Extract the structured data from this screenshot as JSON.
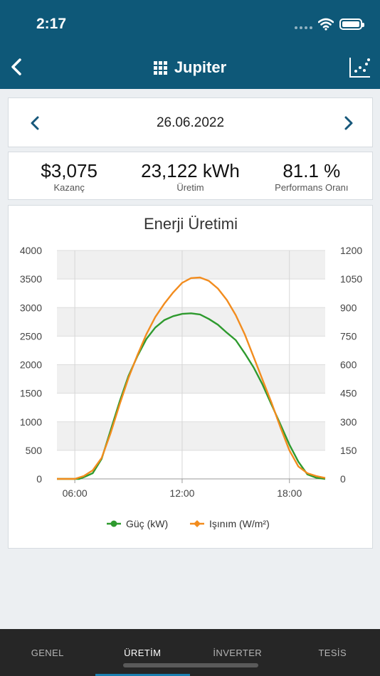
{
  "status_bar": {
    "time": "2:17"
  },
  "navbar": {
    "title": "Jupiter"
  },
  "date_nav": {
    "date": "26.06.2022"
  },
  "stats": [
    {
      "value": "$3,075",
      "label": "Kazanç"
    },
    {
      "value": "23,122 kWh",
      "label": "Üretim"
    },
    {
      "value": "81.1 %",
      "label": "Performans Oranı"
    }
  ],
  "colors": {
    "header": "#0e5878",
    "power": "#2e9a2e",
    "irradiance": "#f28c1e",
    "tabbar": "#262626",
    "active_tab_indicator": "#1a7fb0"
  },
  "chart_data": {
    "type": "line",
    "title": "Enerji Üretimi",
    "x_ticks": [
      "06:00",
      "12:00",
      "18:00"
    ],
    "x_range_hours": [
      5,
      20
    ],
    "y_left": {
      "ticks": [
        0,
        500,
        1000,
        1500,
        2000,
        2500,
        3000,
        3500,
        4000
      ],
      "range": [
        0,
        4000
      ]
    },
    "y_right": {
      "ticks": [
        0,
        150,
        300,
        450,
        600,
        750,
        900,
        1050,
        1200
      ],
      "range": [
        0,
        1200
      ]
    },
    "grid": true,
    "legend_position": "bottom",
    "series": [
      {
        "name": "Güç (kW)",
        "axis": "left",
        "color": "#2e9a2e",
        "x": [
          5.0,
          6.0,
          6.25,
          6.5,
          7.0,
          7.5,
          8.0,
          8.5,
          9.0,
          9.5,
          10.0,
          10.5,
          11.0,
          11.5,
          12.0,
          12.5,
          13.0,
          13.5,
          14.0,
          14.5,
          15.0,
          15.5,
          16.0,
          16.5,
          17.0,
          17.5,
          18.0,
          18.5,
          19.0,
          19.5,
          20.0
        ],
        "y": [
          0,
          0,
          0,
          30,
          100,
          350,
          850,
          1350,
          1800,
          2150,
          2450,
          2650,
          2780,
          2850,
          2890,
          2900,
          2880,
          2800,
          2700,
          2560,
          2430,
          2200,
          1950,
          1650,
          1300,
          950,
          600,
          300,
          80,
          20,
          0
        ]
      },
      {
        "name": "Işınım (W/m²)",
        "axis": "right",
        "color": "#f28c1e",
        "x": [
          5.0,
          6.0,
          6.5,
          7.0,
          7.5,
          8.0,
          8.5,
          9.0,
          9.5,
          10.0,
          10.5,
          11.0,
          11.5,
          12.0,
          12.5,
          13.0,
          13.5,
          14.0,
          14.5,
          15.0,
          15.5,
          16.0,
          16.5,
          17.0,
          17.5,
          18.0,
          18.5,
          19.0,
          19.5,
          20.0
        ],
        "y": [
          0,
          0,
          15,
          45,
          110,
          240,
          390,
          530,
          650,
          760,
          850,
          920,
          980,
          1030,
          1055,
          1058,
          1040,
          1000,
          940,
          860,
          760,
          640,
          520,
          400,
          270,
          150,
          65,
          30,
          15,
          5
        ]
      }
    ]
  },
  "tabs": [
    {
      "label": "GENEL",
      "active": false
    },
    {
      "label": "ÜRETİM",
      "active": true
    },
    {
      "label": "İNVERTER",
      "active": false
    },
    {
      "label": "TESİS",
      "active": false
    }
  ]
}
